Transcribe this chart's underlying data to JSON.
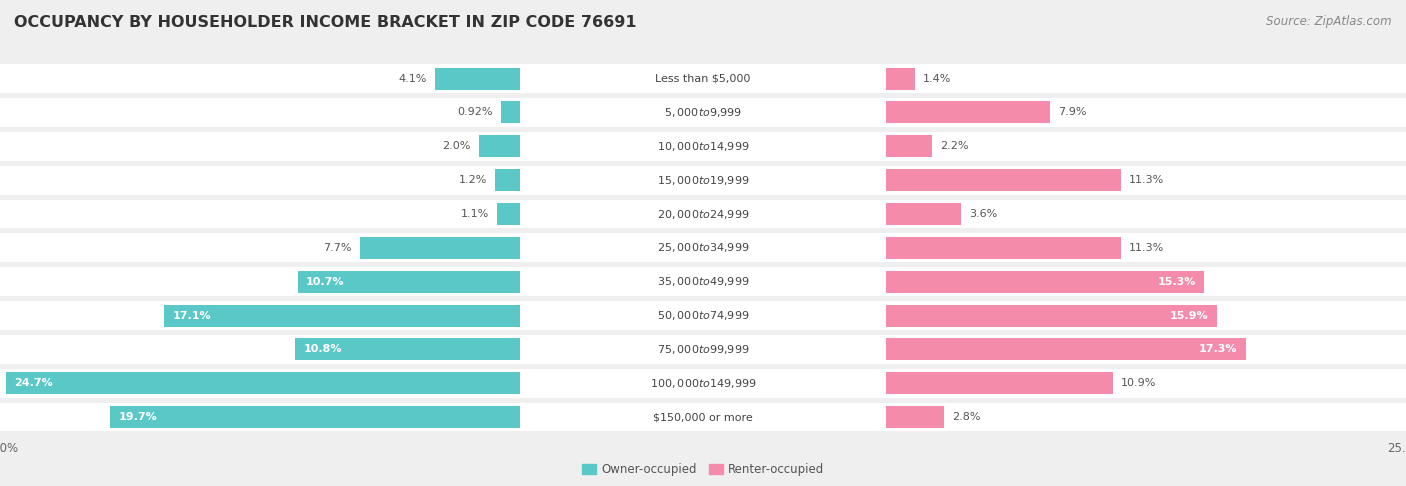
{
  "title": "OCCUPANCY BY HOUSEHOLDER INCOME BRACKET IN ZIP CODE 76691",
  "source": "Source: ZipAtlas.com",
  "categories": [
    "Less than $5,000",
    "$5,000 to $9,999",
    "$10,000 to $14,999",
    "$15,000 to $19,999",
    "$20,000 to $24,999",
    "$25,000 to $34,999",
    "$35,000 to $49,999",
    "$50,000 to $74,999",
    "$75,000 to $99,999",
    "$100,000 to $149,999",
    "$150,000 or more"
  ],
  "owner_occupied": [
    4.1,
    0.92,
    2.0,
    1.2,
    1.1,
    7.7,
    10.7,
    17.1,
    10.8,
    24.7,
    19.7
  ],
  "renter_occupied": [
    1.4,
    7.9,
    2.2,
    11.3,
    3.6,
    11.3,
    15.3,
    15.9,
    17.3,
    10.9,
    2.8
  ],
  "owner_color": "#5BC8C8",
  "renter_color": "#F48BAB",
  "owner_label": "Owner-occupied",
  "renter_label": "Renter-occupied",
  "xlim": 25.0,
  "background_color": "#efefef",
  "bar_bg_color": "#ffffff",
  "title_fontsize": 11.5,
  "source_fontsize": 8.5,
  "label_fontsize": 8,
  "tick_fontsize": 8.5,
  "cat_fontsize": 8
}
